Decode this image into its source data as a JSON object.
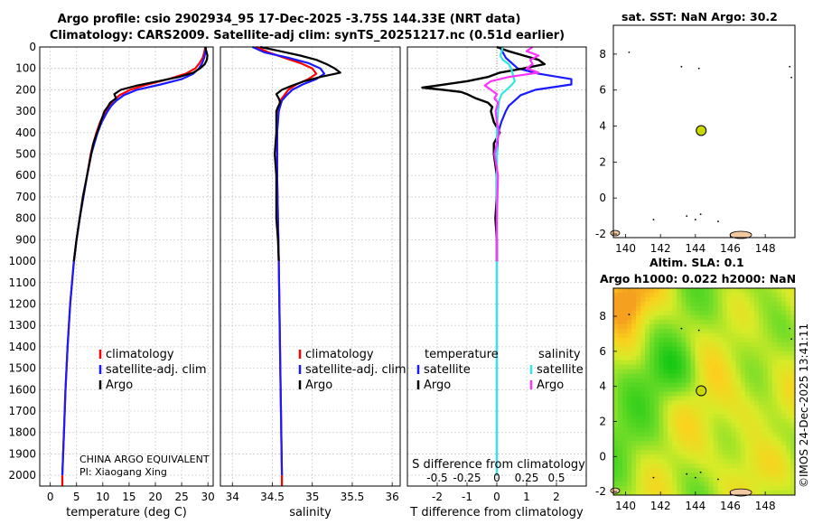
{
  "title": {
    "line1": "Argo profile: csio 2902934_95 17-Dec-2025 -3.75S 144.33E (NRT data)",
    "line2": "Climatology: CARS2009. Satellite-adj clim: synTS_20251217.nc (0.51d earlier)"
  },
  "credit": {
    "line1": "CHINA ARGO EQUIVALENT",
    "line2": "PI: Xiaogang Xing"
  },
  "timestamp": "©IMOS 24-Dec-2025 13:41:11",
  "colors": {
    "climatology": "#ff0000",
    "satellite": "#1a1aff",
    "argo": "#000000",
    "sat_salinity": "#33e6e6",
    "argo_salinity": "#ff33ff",
    "float_marker": "#c8d800",
    "land": "#f2c8a0"
  },
  "chart_data": [
    {
      "id": "temperature",
      "type": "line",
      "xlabel": "temperature (deg C)",
      "xlim": [
        -2,
        31
      ],
      "ylim": [
        0,
        2050
      ],
      "xticks": [
        0,
        5,
        10,
        15,
        20,
        25,
        30
      ],
      "yticks": [
        0,
        100,
        200,
        300,
        400,
        500,
        600,
        700,
        800,
        900,
        1000,
        1100,
        1200,
        1300,
        1400,
        1500,
        1600,
        1700,
        1800,
        1900,
        2000
      ],
      "legend": [
        "climatology",
        "satellite-adj. clim",
        "Argo"
      ],
      "series": [
        {
          "name": "climatology",
          "depth": [
            0,
            25,
            50,
            75,
            100,
            125,
            150,
            175,
            200,
            225,
            250,
            275,
            300,
            350,
            400,
            450,
            500,
            600,
            700,
            800,
            900,
            1000,
            1200,
            1400,
            1600,
            1800,
            2000
          ],
          "values": [
            29.5,
            29.3,
            29.0,
            28.4,
            27.6,
            25.8,
            22.5,
            18.5,
            15.2,
            13.2,
            12.0,
            11.2,
            10.5,
            9.5,
            8.8,
            8.2,
            7.7,
            7.0,
            6.3,
            5.6,
            5.0,
            4.5,
            3.8,
            3.3,
            2.9,
            2.6,
            2.3
          ]
        },
        {
          "name": "satellite-adj. clim",
          "depth": [
            0,
            25,
            50,
            75,
            100,
            125,
            150,
            175,
            200,
            225,
            250,
            275,
            300,
            350,
            400,
            450,
            500,
            600,
            700,
            800,
            900,
            1000,
            1200,
            1400,
            1600,
            1800,
            2000
          ],
          "values": [
            29.6,
            29.5,
            29.3,
            28.9,
            28.3,
            27.2,
            25.0,
            21.0,
            16.5,
            14.0,
            12.6,
            11.6,
            10.9,
            9.8,
            9.0,
            8.4,
            7.8,
            7.0,
            6.3,
            5.6,
            5.0,
            4.5,
            3.8,
            3.3,
            2.9,
            2.6,
            2.3
          ]
        },
        {
          "name": "Argo",
          "depth": [
            0,
            20,
            40,
            60,
            80,
            100,
            120,
            140,
            160,
            180,
            200,
            220,
            240,
            260,
            280,
            300,
            350,
            400,
            450,
            500,
            600,
            700,
            800,
            900,
            1000
          ],
          "values": [
            29.5,
            29.7,
            29.9,
            29.8,
            29.4,
            28.5,
            27.2,
            24.5,
            20.5,
            16.5,
            13.4,
            12.2,
            12.5,
            11.4,
            10.9,
            10.3,
            9.6,
            8.9,
            8.2,
            7.8,
            7.0,
            6.2,
            5.6,
            5.0,
            4.5
          ]
        }
      ]
    },
    {
      "id": "salinity",
      "type": "line",
      "xlabel": "salinity",
      "xlim": [
        33.85,
        36.1
      ],
      "ylim": [
        0,
        2050
      ],
      "xticks": [
        34,
        34.5,
        35,
        35.5,
        36
      ],
      "legend": [
        "climatology",
        "satellite-adj. clim",
        "Argo"
      ],
      "series": [
        {
          "name": "climatology",
          "depth": [
            0,
            25,
            50,
            75,
            100,
            125,
            150,
            175,
            200,
            225,
            250,
            275,
            300,
            350,
            400,
            500,
            600,
            800,
            1000,
            1500,
            2000
          ],
          "values": [
            34.3,
            34.45,
            34.65,
            34.85,
            35.0,
            35.05,
            34.95,
            34.8,
            34.7,
            34.65,
            34.6,
            34.58,
            34.57,
            34.56,
            34.56,
            34.56,
            34.56,
            34.57,
            34.58,
            34.6,
            34.62
          ]
        },
        {
          "name": "satellite-adj. clim",
          "depth": [
            0,
            25,
            50,
            75,
            100,
            125,
            150,
            175,
            200,
            225,
            250,
            275,
            300,
            350,
            400,
            500,
            600,
            800,
            1000,
            1500,
            2000
          ],
          "values": [
            34.25,
            34.4,
            34.7,
            34.95,
            35.1,
            35.15,
            35.05,
            34.88,
            34.75,
            34.68,
            34.62,
            34.6,
            34.58,
            34.57,
            34.56,
            34.56,
            34.56,
            34.57,
            34.58,
            34.6,
            34.62
          ]
        },
        {
          "name": "Argo",
          "depth": [
            0,
            20,
            40,
            60,
            80,
            100,
            120,
            140,
            160,
            180,
            200,
            220,
            240,
            260,
            280,
            300,
            350,
            400,
            500,
            600,
            700,
            800,
            900,
            1000
          ],
          "values": [
            34.35,
            34.6,
            34.85,
            35.05,
            35.18,
            35.28,
            35.35,
            35.1,
            34.9,
            34.75,
            34.62,
            34.55,
            34.58,
            34.6,
            34.57,
            34.55,
            34.55,
            34.55,
            34.53,
            34.55,
            34.55,
            34.55,
            34.57,
            34.58
          ]
        }
      ]
    },
    {
      "id": "difference",
      "type": "line",
      "xlabel": "T difference from climatology",
      "xlabel_top": "S difference from climatology",
      "xlim": [
        -3,
        3
      ],
      "ylim": [
        0,
        2050
      ],
      "xticks": [
        -2,
        -1,
        0,
        1,
        2
      ],
      "xticks_top_labels": [
        "-0.5",
        "-0.25",
        "0",
        "0.25",
        "0.5"
      ],
      "legend_headers": [
        "temperature",
        "salinity"
      ],
      "legend": [
        "satellite",
        "Argo",
        "satellite",
        "Argo"
      ],
      "series": [
        {
          "name": "temperature satellite",
          "depth": [
            0,
            25,
            50,
            75,
            100,
            125,
            150,
            175,
            200,
            225,
            250,
            275,
            300,
            350,
            400,
            500,
            700,
            1000,
            1500,
            2000
          ],
          "values": [
            0.1,
            0.2,
            0.3,
            0.5,
            0.7,
            1.4,
            2.5,
            2.5,
            1.3,
            0.8,
            0.6,
            0.4,
            0.3,
            0.15,
            0.05,
            0,
            0,
            0,
            0,
            0
          ]
        },
        {
          "name": "temperature Argo",
          "depth": [
            0,
            20,
            40,
            60,
            80,
            100,
            120,
            140,
            160,
            180,
            190,
            200,
            210,
            220,
            240,
            260,
            280,
            300,
            350,
            400,
            450,
            500,
            600,
            700,
            800,
            900,
            1000
          ],
          "values": [
            0,
            0.4,
            0.9,
            1.4,
            1.6,
            0.9,
            0.1,
            -0.3,
            -1.0,
            -2.0,
            -2.5,
            -1.8,
            -1.2,
            -1.0,
            -0.7,
            -0.3,
            -0.15,
            -0.2,
            -0.1,
            0.1,
            -0.1,
            -0.1,
            0,
            0,
            -0.05,
            0,
            0
          ]
        },
        {
          "name": "salinity satellite",
          "depth": [
            0,
            20,
            40,
            60,
            80,
            100,
            120,
            140,
            160,
            180,
            200,
            220,
            250,
            300,
            400,
            500,
            700,
            1000,
            1500,
            2000
          ],
          "values": [
            0.05,
            0.04,
            0.03,
            0.05,
            0.1,
            0.12,
            0.13,
            0.14,
            0.15,
            0.12,
            0.08,
            0.04,
            0.02,
            0.01,
            0,
            0,
            0,
            0,
            0,
            0
          ]
        },
        {
          "name": "salinity Argo",
          "depth": [
            0,
            20,
            40,
            60,
            80,
            100,
            120,
            140,
            160,
            180,
            200,
            220,
            240,
            260,
            300,
            350,
            400,
            500,
            600,
            800,
            1000
          ],
          "values": [
            0.3,
            0.25,
            0.35,
            0.28,
            0.3,
            0.25,
            0.35,
            0.1,
            -0.05,
            -0.1,
            -0.05,
            0,
            -0.02,
            0.01,
            -0.01,
            0,
            0.02,
            -0.02,
            0.01,
            0,
            0
          ]
        }
      ]
    },
    {
      "id": "sst-map",
      "type": "heatmap",
      "title": "sat. SST: NaN Argo: 30.2",
      "xlim": [
        139.3,
        149.7
      ],
      "ylim": [
        -2.2,
        9.6
      ],
      "xticks": [
        140,
        142,
        144,
        146,
        148
      ],
      "yticks": [
        -2,
        0,
        2,
        4,
        6,
        8
      ],
      "float": {
        "lon": 144.33,
        "lat": 3.75
      },
      "nodata": true
    },
    {
      "id": "sla-map",
      "type": "heatmap",
      "title": "Altim. SLA: 0.1",
      "subtitle": "Argo h1000: 0.022 h2000: NaN",
      "xlim": [
        139.3,
        149.7
      ],
      "ylim": [
        -2.2,
        9.6
      ],
      "xticks": [
        140,
        142,
        144,
        146,
        148
      ],
      "yticks": [
        -2,
        0,
        2,
        4,
        6,
        8
      ],
      "float": {
        "lon": 144.33,
        "lat": 3.75
      }
    }
  ]
}
